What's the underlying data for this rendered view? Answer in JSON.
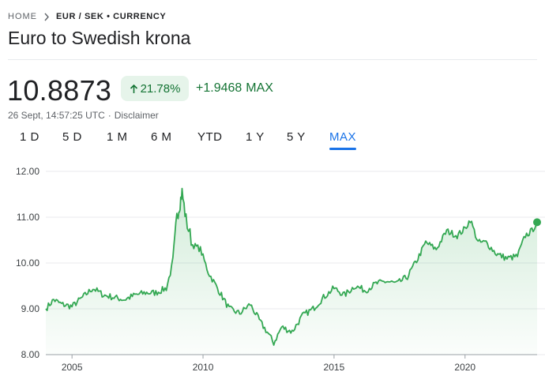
{
  "breadcrumb": {
    "home": "HOME",
    "current": "EUR / SEK • CURRENCY",
    "separator_icon": "chevron-right-icon"
  },
  "title": "Euro to Swedish krona",
  "quote": {
    "price": "10.8873",
    "change_percent": "21.78%",
    "change_absolute": "+1.9468",
    "change_period": "MAX",
    "direction_icon": "arrow-up-icon",
    "timestamp": "26 Sept, 14:57:25 UTC",
    "disclaimer": "Disclaimer"
  },
  "tabs": [
    {
      "label": "1 D",
      "active": false
    },
    {
      "label": "5 D",
      "active": false
    },
    {
      "label": "1 M",
      "active": false
    },
    {
      "label": "6 M",
      "active": false
    },
    {
      "label": "YTD",
      "active": false
    },
    {
      "label": "1 Y",
      "active": false
    },
    {
      "label": "5 Y",
      "active": false
    },
    {
      "label": "MAX",
      "active": true
    }
  ],
  "colors": {
    "positive": "#137333",
    "positive_bg": "#e6f4ea",
    "line": "#34a853",
    "accent": "#1a73e8",
    "grid": "#e8eaed"
  },
  "chart_data": {
    "type": "area",
    "ylim": [
      8.0,
      12.0
    ],
    "xlim": [
      2004.0,
      2022.75
    ],
    "y_ticks": [
      "12.00",
      "11.00",
      "10.00",
      "9.00",
      "8.00"
    ],
    "x_ticks": [
      "2005",
      "2010",
      "2015",
      "2020"
    ],
    "grid": true,
    "series": [
      {
        "x": [
          2004.0,
          2004.3,
          2004.6,
          2005.0,
          2005.4,
          2005.8,
          2006.2,
          2006.6,
          2007.0,
          2007.4,
          2007.8,
          2008.2,
          2008.6,
          2008.85,
          2009.0,
          2009.1,
          2009.2,
          2009.35,
          2009.6,
          2009.9,
          2010.2,
          2010.6,
          2011.0,
          2011.4,
          2011.8,
          2012.2,
          2012.5,
          2012.7,
          2013.0,
          2013.4,
          2013.8,
          2014.2,
          2014.6,
          2015.0,
          2015.4,
          2015.8,
          2016.2,
          2016.6,
          2017.0,
          2017.4,
          2017.8,
          2018.2,
          2018.5,
          2018.9,
          2019.3,
          2019.7,
          2020.0,
          2020.2,
          2020.5,
          2020.8,
          2021.2,
          2021.6,
          2022.0,
          2022.3,
          2022.55,
          2022.75
        ],
        "y": [
          9.0,
          9.2,
          9.1,
          9.05,
          9.25,
          9.45,
          9.3,
          9.25,
          9.2,
          9.3,
          9.35,
          9.35,
          9.45,
          10.0,
          11.0,
          11.25,
          11.55,
          10.95,
          10.4,
          10.3,
          9.8,
          9.4,
          9.0,
          8.9,
          9.1,
          8.7,
          8.45,
          8.25,
          8.6,
          8.5,
          8.85,
          9.0,
          9.25,
          9.45,
          9.3,
          9.5,
          9.4,
          9.55,
          9.6,
          9.55,
          9.7,
          10.1,
          10.45,
          10.3,
          10.7,
          10.6,
          10.75,
          10.95,
          10.45,
          10.45,
          10.2,
          10.1,
          10.15,
          10.6,
          10.7,
          10.89
        ]
      }
    ]
  }
}
